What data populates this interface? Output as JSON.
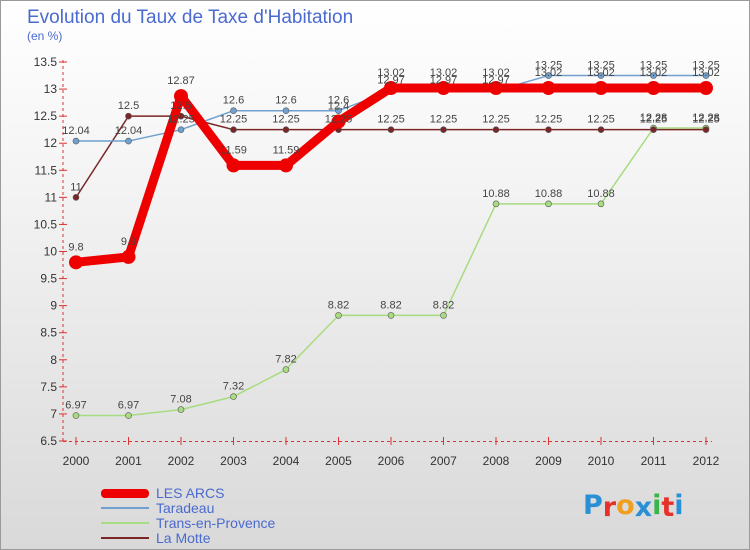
{
  "header": {
    "title": "Evolution du Taux de Taxe d'Habitation",
    "subtitle": "(en %)"
  },
  "chart_data": {
    "type": "line",
    "title": "Evolution du Taux de Taxe d'Habitation",
    "ylabel": "(en %)",
    "xlabel": "",
    "x": [
      2000,
      2001,
      2002,
      2003,
      2004,
      2005,
      2006,
      2007,
      2008,
      2009,
      2010,
      2011,
      2012
    ],
    "ylim": [
      6.5,
      13.5
    ],
    "yticks": [
      6.5,
      7,
      7.5,
      8,
      8.5,
      9,
      9.5,
      10,
      10.5,
      11,
      11.5,
      12,
      12.5,
      13,
      13.5
    ],
    "yticks_labels": [
      "6.5",
      "7",
      "7.5",
      "8",
      "8.5",
      "9",
      "9.5",
      "10",
      "10.5",
      "11",
      "11.5",
      "12",
      "12.5",
      "13",
      "13.5"
    ],
    "grid": false,
    "legend_position": "bottom-left",
    "series": [
      {
        "name": "LES ARCS",
        "color": "#ee0000",
        "values": [
          9.8,
          9.9,
          12.87,
          11.59,
          11.59,
          12.4,
          13.02,
          13.02,
          13.02,
          13.02,
          13.02,
          13.02,
          13.02
        ],
        "labels": [
          "9.8",
          "9.9",
          "12.87",
          "11.59",
          "11.59",
          "12.4",
          "13.02",
          "13.02",
          "13.02",
          "13.02",
          "13.02",
          "13.02",
          "13.02"
        ]
      },
      {
        "name": "Taradeau",
        "color": "#6fa0d0",
        "values": [
          12.04,
          12.04,
          12.25,
          12.6,
          12.6,
          12.6,
          12.97,
          12.97,
          12.97,
          13.25,
          13.25,
          13.25,
          13.25
        ],
        "labels": [
          "12.04",
          "12.04",
          "12.25",
          "12.6",
          "12.6",
          "12.6",
          "12.97",
          "12.97",
          "12.97",
          "13.25",
          "13.25",
          "13.25",
          "13.25"
        ]
      },
      {
        "name": "Trans-en-Provence",
        "color": "#a8dc80",
        "values": [
          6.97,
          6.97,
          7.08,
          7.32,
          7.82,
          8.82,
          8.82,
          8.82,
          10.88,
          10.88,
          10.88,
          12.28,
          12.28
        ],
        "labels": [
          "6.97",
          "6.97",
          "7.08",
          "7.32",
          "7.82",
          "8.82",
          "8.82",
          "8.82",
          "10.88",
          "10.88",
          "10.88",
          "12.28",
          "12.28"
        ]
      },
      {
        "name": "La Motte",
        "color": "#7a2626",
        "values": [
          11.0,
          12.5,
          12.5,
          12.25,
          12.25,
          12.25,
          12.25,
          12.25,
          12.25,
          12.25,
          12.25,
          12.25,
          12.25
        ],
        "labels": [
          "11",
          "12.5",
          "12.5",
          "12.25",
          "12.25",
          "12.25",
          "12.25",
          "12.25",
          "12.25",
          "12.25",
          "12.25",
          "12.25",
          "12.25"
        ]
      }
    ]
  },
  "logo": {
    "letters": [
      "P",
      "r",
      "o",
      "x",
      "i",
      "t",
      "i"
    ],
    "colors": [
      "#2b8fd6",
      "#e8302a",
      "#f0a020",
      "#2b8fd6",
      "#3ab54a",
      "#e8302a",
      "#2b8fd6"
    ]
  }
}
